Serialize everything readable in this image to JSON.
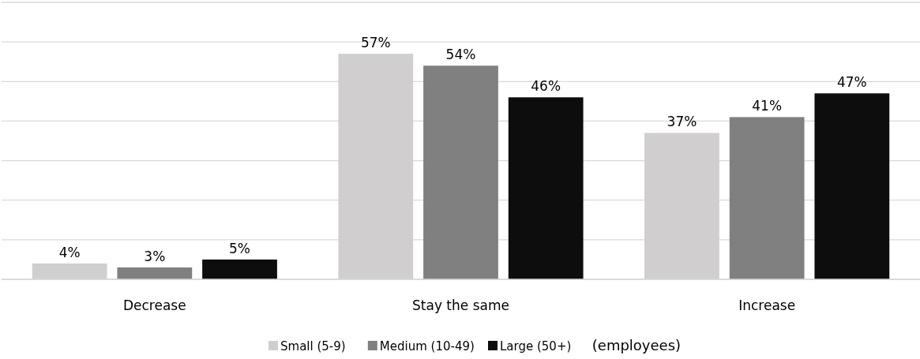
{
  "chart_data": {
    "type": "bar",
    "categories": [
      "Decrease",
      "Stay the same",
      "Increase"
    ],
    "series": [
      {
        "name": "Small (5-9)",
        "color": "#d0cece",
        "values": [
          4,
          57,
          37
        ],
        "value_labels": [
          "4%",
          "57%",
          "37%"
        ]
      },
      {
        "name": "Medium (10-49)",
        "color": "#808080",
        "values": [
          3,
          54,
          41
        ],
        "value_labels": [
          "3%",
          "54%",
          "41%"
        ]
      },
      {
        "name": "Large (50+)",
        "color": "#0d0d0d",
        "values": [
          5,
          46,
          47
        ],
        "value_labels": [
          "5%",
          "46%",
          "47%"
        ]
      }
    ],
    "ylim": [
      0,
      70
    ],
    "yticks": [
      {
        "value": 0,
        "label": null
      },
      {
        "value": 10,
        "label": null
      },
      {
        "value": 20,
        "label": null
      },
      {
        "value": 30,
        "label": null
      },
      {
        "value": 40,
        "label": null
      },
      {
        "value": 50,
        "label": null
      },
      {
        "value": 60,
        "label": null
      },
      {
        "value": 70,
        "label": null
      }
    ],
    "tick_labels": "x",
    "grid": "y",
    "legend": "bottom",
    "annotations": [
      "(employees)"
    ]
  }
}
